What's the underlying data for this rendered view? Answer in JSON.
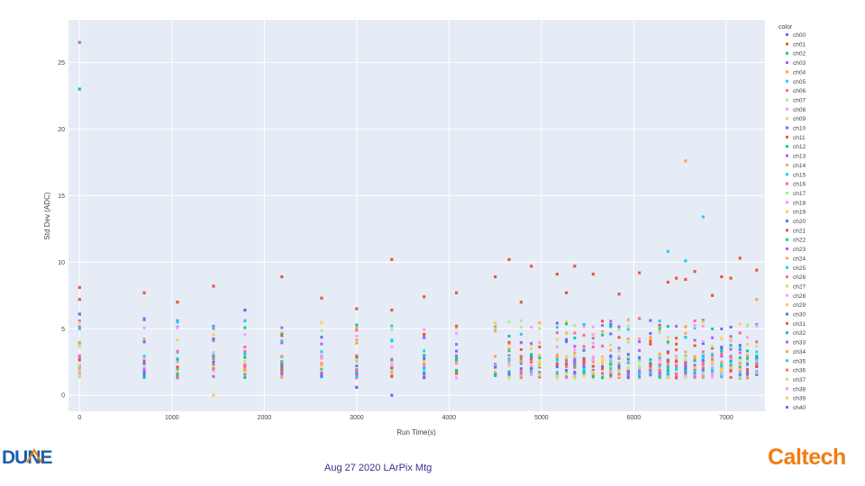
{
  "chart_data": {
    "type": "scatter",
    "title": "",
    "xlabel": "Run Time(s)",
    "ylabel": "Std Dev (ADC)",
    "xlim": [
      -120,
      7420
    ],
    "ylim": [
      -1.2,
      28.2
    ],
    "x_ticks": [
      0,
      1000,
      2000,
      3000,
      4000,
      5000,
      6000,
      7000
    ],
    "y_ticks": [
      0,
      5,
      10,
      15,
      20,
      25
    ],
    "legend_title": "color",
    "legend_position": "right",
    "grid": true,
    "run_times": [
      0,
      700,
      1060,
      1450,
      1790,
      2190,
      2620,
      3000,
      3380,
      3730,
      4080,
      4500,
      4650,
      4780,
      4890,
      4980,
      5170,
      5270,
      5360,
      5460,
      5560,
      5660,
      5750,
      5840,
      5940,
      6060,
      6180,
      6280,
      6370,
      6460,
      6560,
      6660,
      6750,
      6850,
      6950,
      7050,
      7150,
      7230,
      7330
    ],
    "series_names": [
      "ch00",
      "ch01",
      "ch02",
      "ch03",
      "ch04",
      "ch05",
      "ch06",
      "ch07",
      "ch08",
      "ch09",
      "ch10",
      "ch11",
      "ch12",
      "ch13",
      "ch14",
      "ch15",
      "ch16",
      "ch17",
      "ch18",
      "ch19",
      "ch20",
      "ch21",
      "ch22",
      "ch23",
      "ch24",
      "ch25",
      "ch26",
      "ch27",
      "ch28",
      "ch29",
      "ch30",
      "ch31",
      "ch32",
      "ch33",
      "ch34",
      "ch35",
      "ch36",
      "ch37",
      "ch38",
      "ch39",
      "ch40"
    ],
    "colors": [
      "#636efa",
      "#ef553b",
      "#00cc96",
      "#ab63fa",
      "#ffa15a",
      "#19d3f3",
      "#ff6692",
      "#b6e880",
      "#ff97ff",
      "#fecb52",
      "#636efa",
      "#ef553b",
      "#00cc96",
      "#ab63fa",
      "#ffa15a",
      "#19d3f3",
      "#ff6692",
      "#b6e880",
      "#ff97ff",
      "#fecb52",
      "#636efa",
      "#ef553b",
      "#00cc96",
      "#ab63fa",
      "#ffa15a",
      "#19d3f3",
      "#ff6692",
      "#b6e880",
      "#ff97ff",
      "#fecb52",
      "#636efa",
      "#ef553b",
      "#00cc96",
      "#ab63fa",
      "#ffa15a",
      "#19d3f3",
      "#ff6692",
      "#b6e880",
      "#ff97ff",
      "#fecb52",
      "#636efa"
    ],
    "highlight_points": [
      {
        "series": "ch03",
        "x": 0,
        "y": 26.5
      },
      {
        "series": "ch12",
        "x": 0,
        "y": 23.0
      },
      {
        "series": "ch01",
        "x": 0,
        "y": 8.1
      },
      {
        "series": "ch11",
        "x": 0,
        "y": 7.2
      },
      {
        "series": "ch00",
        "x": 0,
        "y": 6.1
      },
      {
        "series": "ch05",
        "x": 0,
        "y": 5.0
      },
      {
        "series": "ch01",
        "x": 700,
        "y": 7.7
      },
      {
        "series": "ch01",
        "x": 1060,
        "y": 7.0
      },
      {
        "series": "ch05",
        "x": 1060,
        "y": 5.5
      },
      {
        "series": "ch01",
        "x": 1450,
        "y": 8.2
      },
      {
        "series": "ch05",
        "x": 1450,
        "y": 5.1
      },
      {
        "series": "ch09",
        "x": 1450,
        "y": 0.0
      },
      {
        "series": "ch00",
        "x": 1790,
        "y": 6.4
      },
      {
        "series": "ch05",
        "x": 1790,
        "y": 5.6
      },
      {
        "series": "ch01",
        "x": 2190,
        "y": 8.9
      },
      {
        "series": "ch01",
        "x": 2620,
        "y": 7.3
      },
      {
        "series": "ch01",
        "x": 3000,
        "y": 6.5
      },
      {
        "series": "ch00",
        "x": 3000,
        "y": 0.6
      },
      {
        "series": "ch01",
        "x": 3380,
        "y": 10.2
      },
      {
        "series": "ch01",
        "x": 3380,
        "y": 6.4
      },
      {
        "series": "ch00",
        "x": 3380,
        "y": 0.0
      },
      {
        "series": "ch01",
        "x": 3730,
        "y": 7.4
      },
      {
        "series": "ch01",
        "x": 4080,
        "y": 7.7
      },
      {
        "series": "ch01",
        "x": 4500,
        "y": 8.9
      },
      {
        "series": "ch01",
        "x": 4650,
        "y": 10.2
      },
      {
        "series": "ch01",
        "x": 4780,
        "y": 7.0
      },
      {
        "series": "ch01",
        "x": 4890,
        "y": 9.7
      },
      {
        "series": "ch01",
        "x": 5170,
        "y": 9.1
      },
      {
        "series": "ch01",
        "x": 5270,
        "y": 7.7
      },
      {
        "series": "ch01",
        "x": 5360,
        "y": 9.7
      },
      {
        "series": "ch01",
        "x": 5560,
        "y": 9.1
      },
      {
        "series": "ch01",
        "x": 5840,
        "y": 7.6
      },
      {
        "series": "ch01",
        "x": 6060,
        "y": 9.2
      },
      {
        "series": "ch05",
        "x": 6370,
        "y": 10.8
      },
      {
        "series": "ch01",
        "x": 6370,
        "y": 8.5
      },
      {
        "series": "ch01",
        "x": 6460,
        "y": 8.8
      },
      {
        "series": "ch04",
        "x": 6560,
        "y": 17.6
      },
      {
        "series": "ch05",
        "x": 6560,
        "y": 10.1
      },
      {
        "series": "ch01",
        "x": 6560,
        "y": 8.7
      },
      {
        "series": "ch01",
        "x": 6660,
        "y": 9.3
      },
      {
        "series": "ch05",
        "x": 6750,
        "y": 13.4
      },
      {
        "series": "ch01",
        "x": 6850,
        "y": 7.5
      },
      {
        "series": "ch01",
        "x": 6950,
        "y": 8.9
      },
      {
        "series": "ch01",
        "x": 7050,
        "y": 8.8
      },
      {
        "series": "ch01",
        "x": 7150,
        "y": 10.3
      },
      {
        "series": "ch01",
        "x": 7330,
        "y": 9.4
      },
      {
        "series": "ch04",
        "x": 7330,
        "y": 7.2
      }
    ],
    "baseline_band": {
      "min": 1.3,
      "max": 3.0,
      "upper_scatter_max": 5.8
    }
  },
  "footer": {
    "text": "Aug 27 2020 LArPix Mtg"
  },
  "logos": {
    "left": "DUNE",
    "right": "Caltech"
  }
}
